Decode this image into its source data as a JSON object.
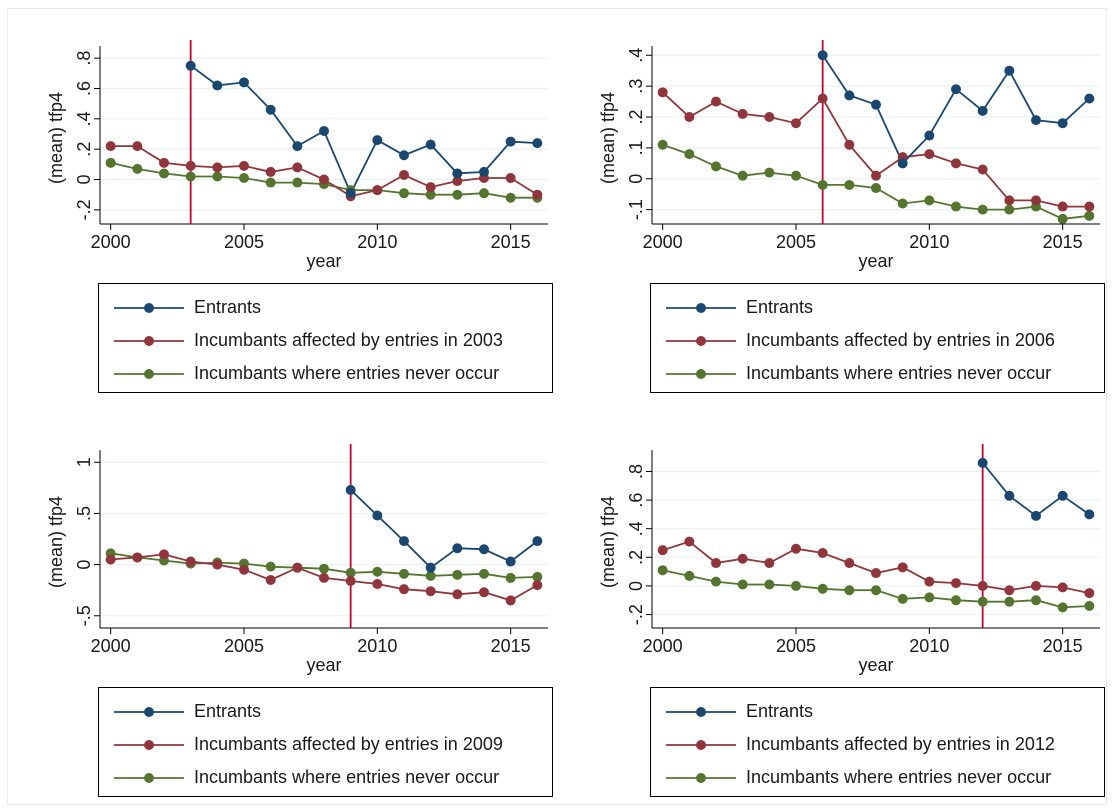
{
  "colors": {
    "entrants": "#1a476f",
    "affected": "#90353b",
    "never": "#55752f",
    "vline": "#c10534",
    "grid": "#eaf2f3"
  },
  "chart_data": [
    {
      "type": "line",
      "xlabel": "year",
      "ylabel": "(mean) tfp4",
      "xticks": [
        2000,
        2005,
        2010,
        2015
      ],
      "yticks": [
        -0.2,
        0,
        0.2,
        0.4,
        0.6,
        0.8
      ],
      "ytick_labels": [
        "-.2",
        "0",
        ".2",
        ".4",
        ".6",
        ".8"
      ],
      "ylim": [
        -0.28,
        0.88
      ],
      "xlim": [
        1999.6,
        2016.4
      ],
      "vline": 2003,
      "legend_position": "bottom",
      "series": [
        {
          "name": "Entrants",
          "x": [
            2003,
            2004,
            2005,
            2006,
            2007,
            2008,
            2009,
            2010,
            2011,
            2012,
            2013,
            2014,
            2015,
            2016
          ],
          "values": [
            0.75,
            0.62,
            0.64,
            0.46,
            0.22,
            0.32,
            -0.09,
            0.26,
            0.16,
            0.23,
            0.04,
            0.05,
            0.25,
            0.24
          ]
        },
        {
          "name": "Incumbants affected by entries in 2003",
          "x": [
            2000,
            2001,
            2002,
            2003,
            2004,
            2005,
            2006,
            2007,
            2008,
            2009,
            2010,
            2011,
            2012,
            2013,
            2014,
            2015,
            2016
          ],
          "values": [
            0.22,
            0.22,
            0.11,
            0.09,
            0.08,
            0.09,
            0.05,
            0.08,
            0.0,
            -0.11,
            -0.07,
            0.03,
            -0.05,
            -0.01,
            0.01,
            0.01,
            -0.1
          ]
        },
        {
          "name": "Incumbants where entries never occur",
          "x": [
            2000,
            2001,
            2002,
            2003,
            2004,
            2005,
            2006,
            2007,
            2008,
            2009,
            2010,
            2011,
            2012,
            2013,
            2014,
            2015,
            2016
          ],
          "values": [
            0.11,
            0.07,
            0.04,
            0.02,
            0.02,
            0.01,
            -0.02,
            -0.02,
            -0.03,
            -0.07,
            -0.07,
            -0.09,
            -0.1,
            -0.1,
            -0.09,
            -0.12,
            -0.12
          ]
        }
      ]
    },
    {
      "type": "line",
      "xlabel": "year",
      "ylabel": "(mean) tfp4",
      "xticks": [
        2000,
        2005,
        2010,
        2015
      ],
      "yticks": [
        -0.1,
        0,
        0.1,
        0.2,
        0.3,
        0.4
      ],
      "ytick_labels": [
        "-.1",
        "0",
        ".1",
        ".2",
        ".3",
        ".4"
      ],
      "ylim": [
        -0.14,
        0.43
      ],
      "xlim": [
        1999.6,
        2016.4
      ],
      "vline": 2006,
      "legend_position": "bottom",
      "series": [
        {
          "name": "Entrants",
          "x": [
            2006,
            2007,
            2008,
            2009,
            2010,
            2011,
            2012,
            2013,
            2014,
            2015,
            2016
          ],
          "values": [
            0.4,
            0.27,
            0.24,
            0.05,
            0.14,
            0.29,
            0.22,
            0.35,
            0.19,
            0.18,
            0.26
          ]
        },
        {
          "name": "Incumbants affected by entries in 2006",
          "x": [
            2000,
            2001,
            2002,
            2003,
            2004,
            2005,
            2006,
            2007,
            2008,
            2009,
            2010,
            2011,
            2012,
            2013,
            2014,
            2015,
            2016
          ],
          "values": [
            0.28,
            0.2,
            0.25,
            0.21,
            0.2,
            0.18,
            0.26,
            0.11,
            0.01,
            0.07,
            0.08,
            0.05,
            0.03,
            -0.07,
            -0.07,
            -0.09,
            -0.09
          ]
        },
        {
          "name": "Incumbants where entries never occur",
          "x": [
            2000,
            2001,
            2002,
            2003,
            2004,
            2005,
            2006,
            2007,
            2008,
            2009,
            2010,
            2011,
            2012,
            2013,
            2014,
            2015,
            2016
          ],
          "values": [
            0.11,
            0.08,
            0.04,
            0.01,
            0.02,
            0.01,
            -0.02,
            -0.02,
            -0.03,
            -0.08,
            -0.07,
            -0.09,
            -0.1,
            -0.1,
            -0.09,
            -0.13,
            -0.12
          ]
        }
      ]
    },
    {
      "type": "line",
      "xlabel": "year",
      "ylabel": "(mean) tfp4",
      "xticks": [
        2000,
        2005,
        2010,
        2015
      ],
      "yticks": [
        -0.5,
        0,
        0.5,
        1
      ],
      "ytick_labels": [
        "-.5",
        "0",
        ".5",
        "1"
      ],
      "ylim": [
        -0.6,
        1.12
      ],
      "xlim": [
        1999.6,
        2016.4
      ],
      "vline": 2009,
      "legend_position": "bottom",
      "series": [
        {
          "name": "Entrants",
          "x": [
            2009,
            2010,
            2011,
            2012,
            2013,
            2014,
            2015,
            2016
          ],
          "values": [
            0.73,
            0.48,
            0.23,
            -0.03,
            0.16,
            0.15,
            0.03,
            0.23
          ]
        },
        {
          "name": "Incumbants affected by entries in 2009",
          "x": [
            2000,
            2001,
            2002,
            2003,
            2004,
            2005,
            2006,
            2007,
            2008,
            2009,
            2010,
            2011,
            2012,
            2013,
            2014,
            2015,
            2016
          ],
          "values": [
            0.05,
            0.07,
            0.1,
            0.03,
            0.0,
            -0.05,
            -0.15,
            -0.03,
            -0.13,
            -0.16,
            -0.19,
            -0.24,
            -0.26,
            -0.29,
            -0.27,
            -0.35,
            -0.2
          ]
        },
        {
          "name": "Incumbants where entries never occur",
          "x": [
            2000,
            2001,
            2002,
            2003,
            2004,
            2005,
            2006,
            2007,
            2008,
            2009,
            2010,
            2011,
            2012,
            2013,
            2014,
            2015,
            2016
          ],
          "values": [
            0.11,
            0.07,
            0.04,
            0.01,
            0.02,
            0.01,
            -0.02,
            -0.03,
            -0.04,
            -0.08,
            -0.07,
            -0.09,
            -0.11,
            -0.1,
            -0.09,
            -0.13,
            -0.12
          ]
        }
      ]
    },
    {
      "type": "line",
      "xlabel": "year",
      "ylabel": "(mean) tfp4",
      "xticks": [
        2000,
        2005,
        2010,
        2015
      ],
      "yticks": [
        -0.2,
        0,
        0.2,
        0.4,
        0.6,
        0.8
      ],
      "ytick_labels": [
        "-.2",
        "0",
        ".2",
        ".4",
        ".6",
        ".8"
      ],
      "ylim": [
        -0.28,
        0.95
      ],
      "xlim": [
        1999.6,
        2016.4
      ],
      "vline": 2012,
      "legend_position": "bottom",
      "series": [
        {
          "name": "Entrants",
          "x": [
            2012,
            2013,
            2014,
            2015,
            2016
          ],
          "values": [
            0.86,
            0.63,
            0.49,
            0.63,
            0.5
          ]
        },
        {
          "name": "Incumbants affected by entries in 2012",
          "x": [
            2000,
            2001,
            2002,
            2003,
            2004,
            2005,
            2006,
            2007,
            2008,
            2009,
            2010,
            2011,
            2012,
            2013,
            2014,
            2015,
            2016
          ],
          "values": [
            0.25,
            0.31,
            0.16,
            0.19,
            0.16,
            0.26,
            0.23,
            0.16,
            0.09,
            0.13,
            0.03,
            0.02,
            0.0,
            -0.03,
            0.0,
            -0.01,
            -0.05
          ]
        },
        {
          "name": "Incumbants where entries never occur",
          "x": [
            2000,
            2001,
            2002,
            2003,
            2004,
            2005,
            2006,
            2007,
            2008,
            2009,
            2010,
            2011,
            2012,
            2013,
            2014,
            2015,
            2016
          ],
          "values": [
            0.11,
            0.07,
            0.03,
            0.01,
            0.01,
            0.0,
            -0.02,
            -0.03,
            -0.03,
            -0.09,
            -0.08,
            -0.1,
            -0.11,
            -0.11,
            -0.1,
            -0.15,
            -0.14
          ]
        }
      ]
    }
  ]
}
